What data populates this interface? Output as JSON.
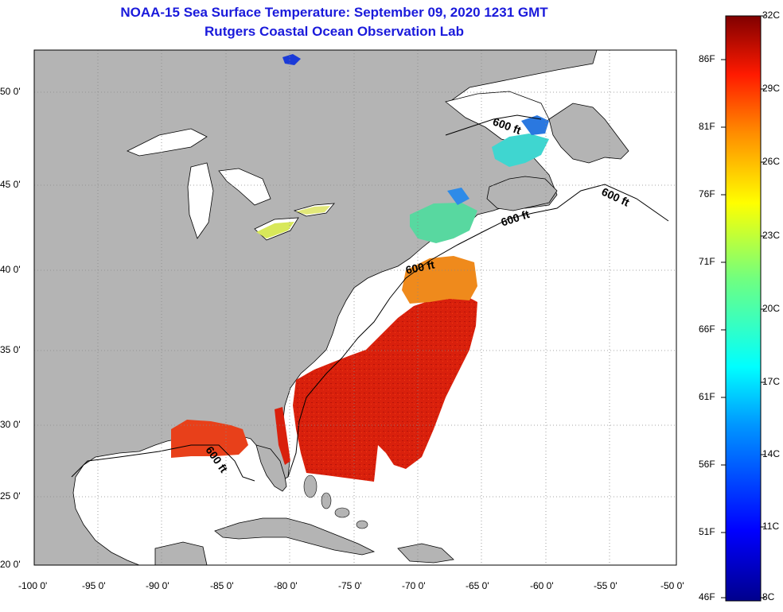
{
  "title": {
    "line1": "NOAA-15 Sea Surface Temperature:  September 09, 2020 1231 GMT",
    "line2": "Rutgers Coastal Ocean Observation Lab"
  },
  "axes": {
    "longitude_labels": [
      "-100 0'",
      "-95 0'",
      "-90 0'",
      "-85 0'",
      "-80 0'",
      "-75 0'",
      "-70 0'",
      "-65 0'",
      "-60 0'",
      "-55 0'",
      "-50 0'"
    ],
    "latitude_labels": [
      "50 0'",
      "45 0'",
      "40 0'",
      "35 0'",
      "30 0'",
      "25 0'",
      "20 0'"
    ]
  },
  "isobath_labels": [
    "600 ft",
    "600 ft",
    "600 ft",
    "600 ft",
    "600 ft"
  ],
  "colorbar": {
    "fahrenheit": [
      "86F",
      "81F",
      "76F",
      "71F",
      "66F",
      "61F",
      "56F",
      "51F",
      "46F"
    ],
    "celsius": [
      "32C",
      "29C",
      "26C",
      "23C",
      "20C",
      "17C",
      "14C",
      "11C",
      "8C"
    ]
  },
  "colors": {
    "land": "#b4b4b4",
    "ocean": "#ffffff",
    "title": "#1a1adb",
    "warm": "#d81e0a",
    "mid": "#f08a1a",
    "cool": "#3fd6d0"
  }
}
